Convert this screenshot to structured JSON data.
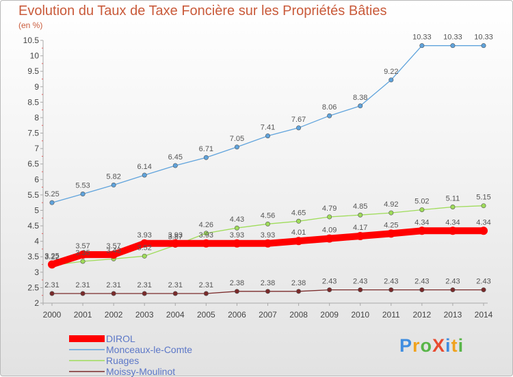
{
  "title": "Evolution du Taux de Taxe Foncière sur les Propriétés Bâties",
  "subtitle": "(en %)",
  "logo": "ProXiti",
  "chart_data": {
    "type": "line",
    "x": [
      "2000",
      "2001",
      "2002",
      "2003",
      "2004",
      "2005",
      "2006",
      "2007",
      "2008",
      "2009",
      "2010",
      "2011",
      "2012",
      "2013",
      "2014"
    ],
    "ylim": [
      2,
      10.5
    ],
    "yticks": [
      "2",
      "2.5",
      "3",
      "3.5",
      "4",
      "4.5",
      "5",
      "5.5",
      "6",
      "6.5",
      "7",
      "7.5",
      "8",
      "8.5",
      "9",
      "9.5",
      "10",
      "10.5"
    ],
    "grid": false,
    "legend_position": "bottom-left",
    "series": [
      {
        "name": "DIROL",
        "color": "#ff0000",
        "width": 10,
        "values": [
          3.25,
          3.57,
          3.57,
          3.93,
          3.93,
          3.93,
          3.93,
          3.93,
          4.01,
          4.09,
          4.17,
          4.25,
          4.34,
          4.34,
          4.34
        ],
        "labels": [
          "3.25",
          "3.57",
          "3.57",
          "3.93",
          "3.93",
          "3.93",
          "3.93",
          "3.93",
          "4.01",
          "4.09",
          "4.17",
          "4.25",
          "4.34",
          "4.34",
          "4.34"
        ]
      },
      {
        "name": "Monceaux-le-Comte",
        "color": "#5fa3dc",
        "width": 1.3,
        "values": [
          5.25,
          5.53,
          5.82,
          6.14,
          6.45,
          6.71,
          7.05,
          7.41,
          7.67,
          8.06,
          8.38,
          9.22,
          10.33,
          10.33,
          10.33
        ],
        "labels": [
          "5.25",
          "5.53",
          "5.82",
          "6.14",
          "6.45",
          "6.71",
          "7.05",
          "7.41",
          "7.67",
          "8.06",
          "8.38",
          "9.22",
          "10.33",
          "10.33",
          "10.33"
        ]
      },
      {
        "name": "Ruages",
        "color": "#9fdc5a",
        "width": 1.3,
        "values": [
          3.22,
          3.35,
          3.43,
          3.52,
          3.87,
          4.26,
          4.43,
          4.56,
          4.65,
          4.79,
          4.85,
          4.92,
          5.02,
          5.11,
          5.15
        ],
        "labels": [
          "3.22",
          "3.35",
          "3.43",
          "3.52",
          "3.87",
          "4.26",
          "4.43",
          "4.56",
          "4.65",
          "4.79",
          "4.85",
          "4.92",
          "5.02",
          "5.11",
          "5.15"
        ]
      },
      {
        "name": "Moissy-Moulinot",
        "color": "#7a2a2a",
        "width": 1.3,
        "values": [
          2.31,
          2.31,
          2.31,
          2.31,
          2.31,
          2.31,
          2.38,
          2.38,
          2.38,
          2.43,
          2.43,
          2.43,
          2.43,
          2.43,
          2.43
        ],
        "labels": [
          "2.31",
          "2.31",
          "2.31",
          "2.31",
          "2.31",
          "2.31",
          "2.38",
          "2.38",
          "2.38",
          "2.43",
          "2.43",
          "2.43",
          "2.43",
          "2.43",
          "2.43"
        ]
      }
    ]
  }
}
